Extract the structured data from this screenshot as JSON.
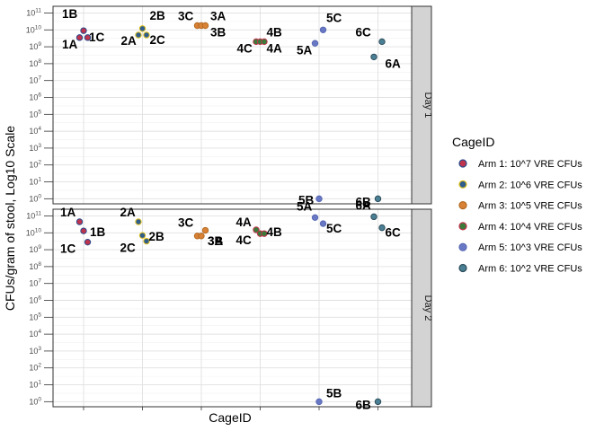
{
  "chart_data": {
    "type": "scatter",
    "ylabel": "CFUs/gram of stool, Log10 Scale",
    "xlabel": "CageID",
    "y_scale": "log10",
    "ylim": [
      0.5,
      250000000000
    ],
    "y_tick_exponents": [
      0,
      1,
      2,
      3,
      4,
      5,
      6,
      7,
      8,
      9,
      10,
      11
    ],
    "x_positions": [
      "Arm 1",
      "Arm 2",
      "Arm 3",
      "Arm 4",
      "Arm 5",
      "Arm 6"
    ],
    "grid": true,
    "legend": {
      "title": "CageID",
      "position": "right",
      "entries": [
        {
          "label": "Arm 1: 10^7 VRE CFUs",
          "fill": "#c0334d",
          "stroke": "#2a4a8a"
        },
        {
          "label": "Arm 2: 10^6 VRE CFUs",
          "fill": "#2f5d8c",
          "stroke": "#e3c21f"
        },
        {
          "label": "Arm 3: 10^5 VRE CFUs",
          "fill": "#d98236",
          "stroke": "#b36a22"
        },
        {
          "label": "Arm 4: 10^4 VRE CFUs",
          "fill": "#3a7a3a",
          "stroke": "#c0334d"
        },
        {
          "label": "Arm 5: 10^3 VRE CFUs",
          "fill": "#6878c4",
          "stroke": "#5868b4"
        },
        {
          "label": "Arm 6: 10^2 VRE CFUs",
          "fill": "#4a7f94",
          "stroke": "#2e4e5c"
        }
      ]
    },
    "panels": [
      {
        "strip": "Day 1",
        "points": [
          {
            "arm": 1,
            "label": "1A",
            "y": 3500000000
          },
          {
            "arm": 1,
            "label": "1B",
            "y": 9000000000
          },
          {
            "arm": 1,
            "label": "1C",
            "y": 3500000000
          },
          {
            "arm": 2,
            "label": "2A",
            "y": 5000000000
          },
          {
            "arm": 2,
            "label": "2B",
            "y": 12000000000
          },
          {
            "arm": 2,
            "label": "2C",
            "y": 5000000000
          },
          {
            "arm": 3,
            "label": "3A",
            "y": 18000000000
          },
          {
            "arm": 3,
            "label": "3B",
            "y": 18000000000
          },
          {
            "arm": 3,
            "label": "3C",
            "y": 18000000000
          },
          {
            "arm": 4,
            "label": "4A",
            "y": 2000000000
          },
          {
            "arm": 4,
            "label": "4B",
            "y": 2000000000
          },
          {
            "arm": 4,
            "label": "4C",
            "y": 2000000000
          },
          {
            "arm": 5,
            "label": "5A",
            "y": 1600000000
          },
          {
            "arm": 5,
            "label": "5B",
            "y": 1
          },
          {
            "arm": 5,
            "label": "5C",
            "y": 10000000000
          },
          {
            "arm": 6,
            "label": "6A",
            "y": 250000000
          },
          {
            "arm": 6,
            "label": "6B",
            "y": 1
          },
          {
            "arm": 6,
            "label": "6C",
            "y": 2000000000
          }
        ]
      },
      {
        "strip": "Day 2",
        "points": [
          {
            "arm": 1,
            "label": "1A",
            "y": 45000000000
          },
          {
            "arm": 1,
            "label": "1B",
            "y": 13000000000
          },
          {
            "arm": 1,
            "label": "1C",
            "y": 2800000000
          },
          {
            "arm": 2,
            "label": "2A",
            "y": 45000000000
          },
          {
            "arm": 2,
            "label": "2B",
            "y": 7000000000
          },
          {
            "arm": 2,
            "label": "2C",
            "y": 3200000000
          },
          {
            "arm": 3,
            "label": "3A",
            "y": 6500000000
          },
          {
            "arm": 3,
            "label": "3B",
            "y": 6500000000
          },
          {
            "arm": 3,
            "label": "3C",
            "y": 14000000000
          },
          {
            "arm": 4,
            "label": "4A",
            "y": 15000000000
          },
          {
            "arm": 4,
            "label": "4B",
            "y": 9000000000
          },
          {
            "arm": 4,
            "label": "4C",
            "y": 9000000000
          },
          {
            "arm": 5,
            "label": "5A",
            "y": 80000000000
          },
          {
            "arm": 5,
            "label": "5B",
            "y": 1
          },
          {
            "arm": 5,
            "label": "5C",
            "y": 35000000000
          },
          {
            "arm": 6,
            "label": "6A",
            "y": 90000000000
          },
          {
            "arm": 6,
            "label": "6B",
            "y": 1
          },
          {
            "arm": 6,
            "label": "6C",
            "y": 20000000000
          }
        ]
      }
    ]
  }
}
